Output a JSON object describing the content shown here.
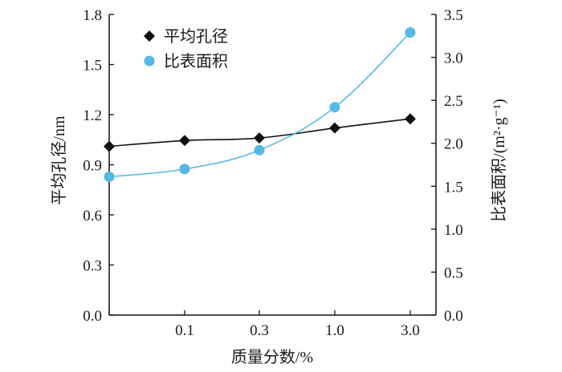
{
  "chart_data": {
    "type": "line",
    "xlabel": "质量分数/%",
    "ylabel_left": "平均孔径/nm",
    "ylabel_right": "比表面积/(m²·g⁻¹)",
    "categories": [
      "",
      "0.1",
      "0.3",
      "1.0",
      "3.0"
    ],
    "ylim_left": [
      0,
      1.8
    ],
    "yticks_left": [
      "0.0",
      "0.3",
      "0.6",
      "0.9",
      "1.2",
      "1.5",
      "1.8"
    ],
    "ylim_right": [
      0,
      3.5
    ],
    "yticks_right": [
      "0.0",
      "0.5",
      "1.0",
      "1.5",
      "2.0",
      "2.5",
      "3.0",
      "3.5"
    ],
    "legend_position": "top-left",
    "grid": false,
    "series": [
      {
        "name": "平均孔径",
        "axis": "left",
        "marker": "diamond",
        "color": "#111111",
        "values": [
          1.01,
          1.045,
          1.06,
          1.12,
          1.175
        ]
      },
      {
        "name": "比表面积",
        "axis": "right",
        "marker": "circle",
        "color": "#55b9e4",
        "values": [
          1.61,
          1.7,
          1.92,
          2.42,
          3.29
        ]
      }
    ]
  }
}
